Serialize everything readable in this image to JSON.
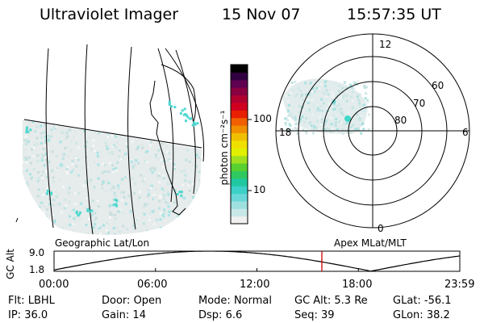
{
  "header": {
    "instrument": "Ultraviolet Imager",
    "date": "15 Nov 07",
    "time": "15:57:35 UT"
  },
  "colorbar": {
    "unit_label": "photon cm⁻²s⁻¹",
    "ticks": [
      "100",
      "10"
    ],
    "colors": [
      "#f0f0f0",
      "#c8e8e8",
      "#9ee0e0",
      "#6ad8d8",
      "#3cd0c8",
      "#20c8a0",
      "#30c860",
      "#58d030",
      "#a0e020",
      "#e0f000",
      "#f0e000",
      "#f0c000",
      "#f09000",
      "#f06000",
      "#e82000",
      "#d00020",
      "#b00030",
      "#880040",
      "#600050",
      "#300040",
      "#000000"
    ]
  },
  "left_map": {
    "caption": "Geographic Lat/Lon"
  },
  "polar_plot": {
    "caption": "Apex MLat/MLT",
    "mlt_labels": {
      "top": "12",
      "left": "18",
      "right": "6",
      "bottom": "0"
    },
    "lat_labels": [
      "60",
      "70",
      "80"
    ]
  },
  "altitude_plot": {
    "ylabel": "GC Alt",
    "y_ticks": [
      "9.0",
      "1.8"
    ],
    "x_ticks": [
      "00:00",
      "06:00",
      "12:00",
      "18:00",
      "23:59"
    ],
    "marker_color": "#cc0000"
  },
  "footer": {
    "row1": [
      {
        "label": "Flt:",
        "value": "LBHL"
      },
      {
        "label": "Door:",
        "value": "Open"
      },
      {
        "label": "Mode:",
        "value": "Normal"
      },
      {
        "label": "GC Alt:",
        "value": "5.3 Re"
      },
      {
        "label": "GLat:",
        "value": "-56.1"
      }
    ],
    "row2": [
      {
        "label": "IP:",
        "value": "36.0"
      },
      {
        "label": "Gain:",
        "value": "14"
      },
      {
        "label": "Dsp:",
        "value": "6.6"
      },
      {
        "label": "Seq:",
        "value": "39"
      },
      {
        "label": "GLon:",
        "value": "38.2"
      }
    ]
  }
}
